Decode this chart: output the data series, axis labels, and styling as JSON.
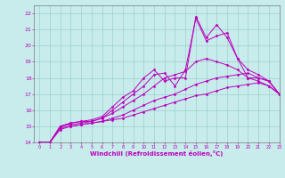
{
  "xlabel": "Windchill (Refroidissement éolien,°C)",
  "xlim": [
    -0.5,
    23
  ],
  "ylim": [
    14,
    22.5
  ],
  "xticks": [
    0,
    1,
    2,
    3,
    4,
    5,
    6,
    7,
    8,
    9,
    10,
    11,
    12,
    13,
    14,
    15,
    16,
    17,
    18,
    19,
    20,
    21,
    22,
    23
  ],
  "yticks": [
    14,
    15,
    16,
    17,
    18,
    19,
    20,
    21,
    22
  ],
  "background_color": "#c8ecec",
  "grid_color": "#9dcece",
  "line_color": "#bb00bb",
  "lines": [
    {
      "x": [
        0,
        1,
        2,
        3,
        4,
        5,
        6,
        7,
        8,
        9,
        10,
        11,
        12,
        13,
        14,
        15,
        16,
        17,
        18,
        19,
        20,
        21,
        22,
        23
      ],
      "y": [
        14.0,
        14.0,
        14.8,
        15.0,
        15.1,
        15.2,
        15.3,
        15.4,
        15.5,
        15.7,
        15.9,
        16.1,
        16.3,
        16.5,
        16.7,
        16.9,
        17.0,
        17.2,
        17.4,
        17.5,
        17.6,
        17.7,
        17.5,
        17.0
      ]
    },
    {
      "x": [
        0,
        1,
        2,
        3,
        4,
        5,
        6,
        7,
        8,
        9,
        10,
        11,
        12,
        13,
        14,
        15,
        16,
        17,
        18,
        19,
        20,
        21,
        22,
        23
      ],
      "y": [
        14.0,
        14.0,
        14.9,
        15.0,
        15.1,
        15.2,
        15.3,
        15.5,
        15.7,
        16.0,
        16.3,
        16.6,
        16.8,
        17.0,
        17.3,
        17.6,
        17.8,
        18.0,
        18.1,
        18.2,
        18.3,
        18.0,
        17.8,
        17.0
      ]
    },
    {
      "x": [
        0,
        1,
        2,
        3,
        4,
        5,
        6,
        7,
        8,
        9,
        10,
        11,
        12,
        13,
        14,
        15,
        16,
        17,
        18,
        19,
        20,
        21,
        22,
        23
      ],
      "y": [
        14.0,
        14.0,
        15.0,
        15.1,
        15.2,
        15.3,
        15.5,
        15.8,
        16.2,
        16.6,
        17.0,
        17.5,
        18.0,
        18.2,
        18.4,
        19.0,
        19.2,
        19.0,
        18.8,
        18.5,
        18.0,
        17.8,
        17.5,
        17.0
      ]
    },
    {
      "x": [
        0,
        1,
        2,
        3,
        4,
        5,
        6,
        7,
        8,
        9,
        10,
        11,
        12,
        13,
        14,
        15,
        16,
        17,
        18,
        19,
        20,
        21,
        22,
        23
      ],
      "y": [
        14.0,
        14.0,
        15.0,
        15.2,
        15.3,
        15.3,
        15.5,
        16.0,
        16.5,
        17.0,
        17.5,
        18.2,
        18.3,
        17.5,
        18.5,
        21.7,
        20.3,
        20.6,
        20.8,
        19.2,
        18.0,
        18.0,
        17.8,
        17.0
      ]
    },
    {
      "x": [
        0,
        1,
        2,
        3,
        4,
        5,
        6,
        7,
        8,
        9,
        10,
        11,
        12,
        13,
        14,
        15,
        16,
        17,
        18,
        19,
        20,
        21,
        22,
        23
      ],
      "y": [
        14.0,
        14.0,
        15.0,
        15.2,
        15.3,
        15.4,
        15.6,
        16.2,
        16.8,
        17.2,
        18.0,
        18.5,
        17.8,
        18.0,
        18.0,
        21.8,
        20.5,
        21.3,
        20.5,
        19.2,
        18.5,
        18.2,
        17.8,
        17.0
      ]
    }
  ]
}
